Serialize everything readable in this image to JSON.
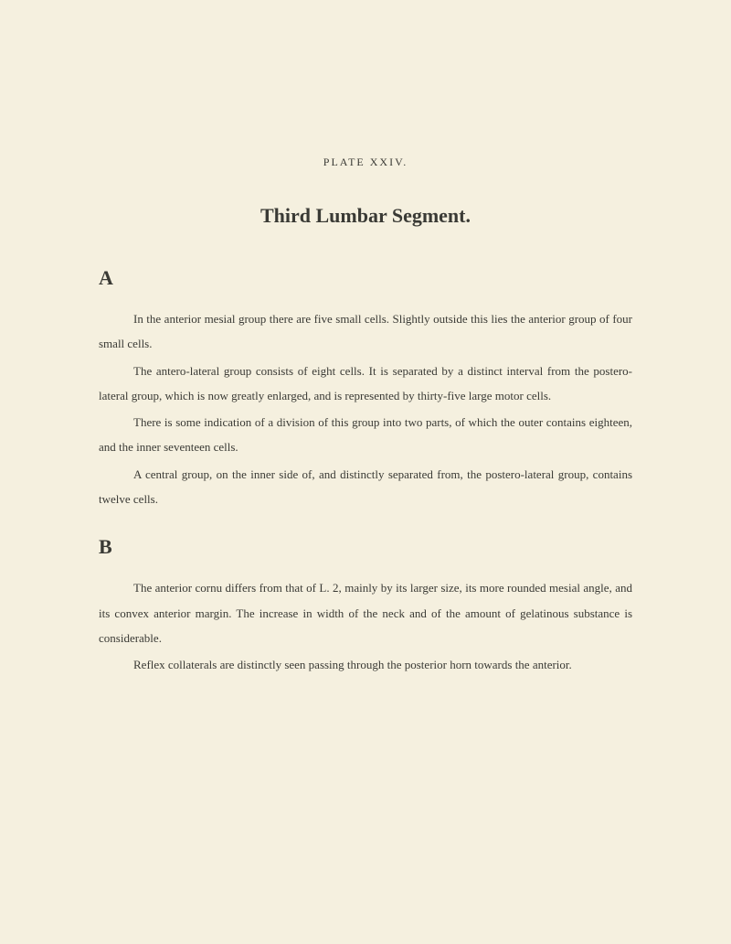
{
  "plate_label": "PLATE XXIV.",
  "title": "Third Lumbar Segment.",
  "section_a": {
    "letter": "A",
    "paragraphs": [
      "In the anterior mesial group there are five small cells. Slightly outside this lies the anterior group of four small cells.",
      "The antero-lateral group consists of eight cells. It is separated by a distinct interval from the postero-lateral group, which is now greatly enlarged, and is represented by thirty-five large motor cells.",
      "There is some indication of a division of this group into two parts, of which the outer contains eighteen, and the inner seventeen cells.",
      "A central group, on the inner side of, and distinctly separated from, the postero-lateral group, contains twelve cells."
    ]
  },
  "section_b": {
    "letter": "B",
    "paragraphs": [
      "The anterior cornu differs from that of L. 2, mainly by its larger size, its more rounded mesial angle, and its convex anterior margin. The increase in width of the neck and of the amount of gelatinous substance is considerable.",
      "Reflex collaterals are distinctly seen passing through the posterior horn towards the anterior."
    ]
  },
  "colors": {
    "background": "#f5f0df",
    "text": "#3a3a35"
  }
}
